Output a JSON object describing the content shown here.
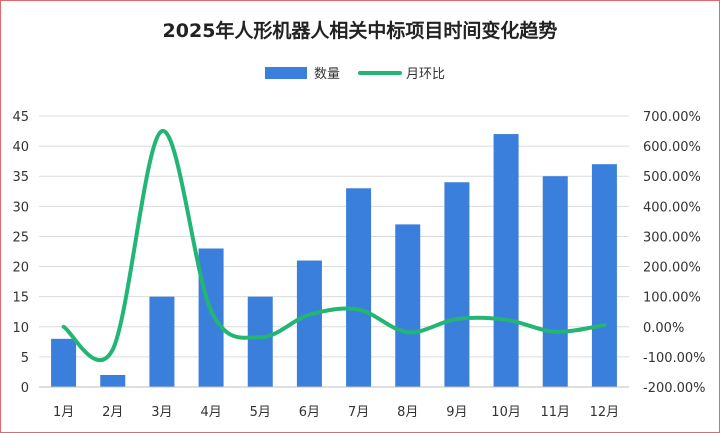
{
  "chart_data": {
    "type": "bar",
    "title": "2025年人形机器人相关中标项目时间变化趋势",
    "categories": [
      "1月",
      "2月",
      "3月",
      "4月",
      "5月",
      "6月",
      "7月",
      "8月",
      "9月",
      "10月",
      "11月",
      "12月"
    ],
    "series": [
      {
        "name": "数量",
        "type": "bar",
        "axis": "left",
        "color": "#3a7fdc",
        "values": [
          8,
          2,
          15,
          23,
          15,
          21,
          33,
          27,
          34,
          42,
          35,
          37
        ]
      },
      {
        "name": "月环比",
        "type": "line",
        "axis": "right",
        "color": "#22b573",
        "values": [
          0,
          -75,
          650,
          53.3,
          -34.8,
          40,
          57.1,
          -18.2,
          25.9,
          23.5,
          -16.7,
          5.7
        ]
      }
    ],
    "y_left": {
      "min": 0,
      "max": 45,
      "ticks": [
        "0",
        "5",
        "10",
        "15",
        "20",
        "25",
        "30",
        "35",
        "40",
        "45"
      ]
    },
    "y_right": {
      "min": -200,
      "max": 700,
      "ticks": [
        "-200.00%",
        "-100.00%",
        "0.00%",
        "100.00%",
        "200.00%",
        "300.00%",
        "400.00%",
        "500.00%",
        "600.00%",
        "700.00%"
      ]
    },
    "grid": true,
    "legend_position": "top-center"
  }
}
